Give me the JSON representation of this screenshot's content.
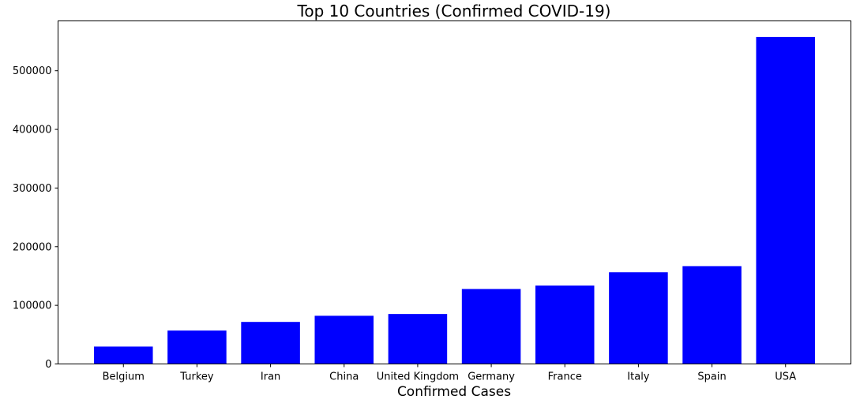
{
  "chart_data": {
    "type": "bar",
    "title": "Top 10 Countries (Confirmed COVID-19)",
    "xlabel": "Confirmed Cases",
    "ylabel": "",
    "categories": [
      "Belgium",
      "Turkey",
      "Iran",
      "China",
      "United Kingdom",
      "Germany",
      "France",
      "Italy",
      "Spain",
      "USA"
    ],
    "values": [
      29647,
      56956,
      71686,
      82160,
      85206,
      127854,
      133670,
      156363,
      166831,
      557571
    ],
    "ylim": [
      0,
      585000
    ],
    "yticks": [
      0,
      100000,
      200000,
      300000,
      400000,
      500000
    ],
    "bar_color": "#0000ff",
    "grid": false,
    "legend": "none"
  }
}
